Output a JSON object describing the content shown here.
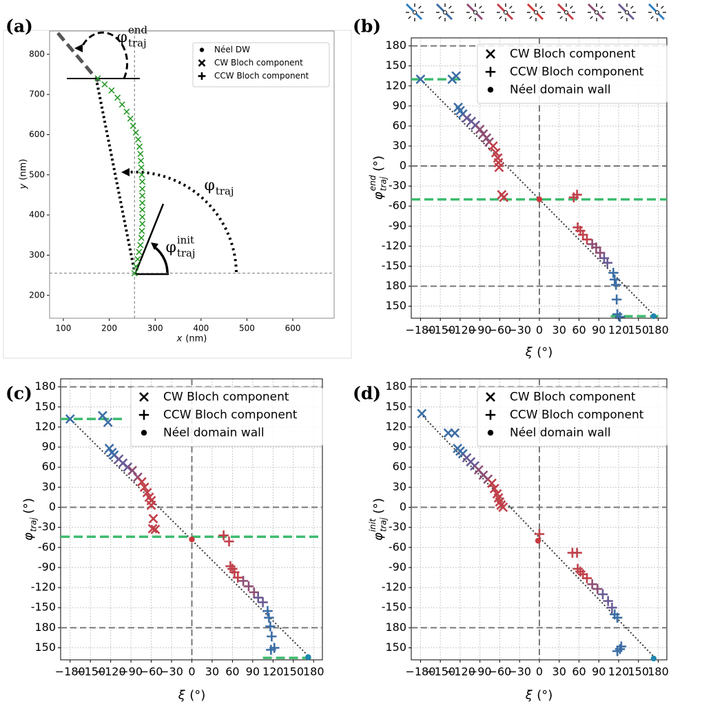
{
  "chart_data": [
    {
      "type": "scatter",
      "label": "(a)",
      "x_label": {
        "symbol": "x",
        "unit": "(nm)"
      },
      "y_label": {
        "symbol": "y",
        "unit": "(nm)"
      },
      "xlim": [
        70,
        690
      ],
      "ylim": [
        143,
        858
      ],
      "xticks": [
        100,
        200,
        300,
        400,
        500,
        600
      ],
      "yticks": [
        200,
        300,
        400,
        500,
        600,
        700,
        800
      ],
      "reference_lines": {
        "x": [
          255
        ],
        "y": [
          255
        ]
      },
      "legend": [
        {
          "name": "Néel DW",
          "marker": "dot"
        },
        {
          "name": "CW Bloch component",
          "marker": "x"
        },
        {
          "name": "CCW Bloch component",
          "marker": "plus"
        }
      ],
      "trajectory": {
        "color": "#2a9a2a",
        "marker": "x",
        "x": [
          255,
          258,
          262,
          265,
          268,
          270,
          271,
          272,
          272,
          272,
          272,
          272,
          272,
          272,
          271,
          270,
          269,
          268,
          266,
          263,
          258,
          252,
          246,
          238,
          228,
          218,
          205,
          190,
          175
        ],
        "y": [
          255,
          272,
          290,
          308,
          325,
          343,
          360,
          378,
          395,
          413,
          430,
          448,
          465,
          483,
          500,
          518,
          535,
          552,
          570,
          588,
          605,
          622,
          640,
          657,
          675,
          692,
          710,
          725,
          740
        ]
      },
      "annotations": [
        {
          "symbol": "φ",
          "sub": "traj",
          "sup": "end"
        },
        {
          "symbol": "φ",
          "sub": "traj"
        },
        {
          "symbol": "φ",
          "sub": "traj",
          "sup": "init"
        }
      ]
    },
    {
      "type": "scatter",
      "label": "(b)",
      "x_label": {
        "symbol": "ξ",
        "unit": "(°)"
      },
      "y_label": {
        "symbol": "φ",
        "sub": "traj",
        "sup": "end",
        "unit": "(°)"
      },
      "xlim": [
        -194,
        193
      ],
      "ylim": [
        -228,
        192
      ],
      "grid": true,
      "xticks": [
        {
          "value": -180,
          "label": "−180"
        },
        {
          "value": -150,
          "label": "−150"
        },
        {
          "value": -120,
          "label": "−120"
        },
        {
          "value": -90,
          "label": "−90"
        },
        {
          "value": -60,
          "label": "−60"
        },
        {
          "value": -30,
          "label": "−30"
        },
        0,
        30,
        60,
        90,
        120,
        150,
        180
      ],
      "yticks": [
        180,
        150,
        120,
        90,
        60,
        30,
        0,
        -30,
        -60,
        -90,
        -120,
        -150,
        {
          "value": -180,
          "label": "180"
        },
        {
          "value": -210,
          "label": "150"
        }
      ],
      "hlines": [
        180,
        0,
        -180
      ],
      "vlines": [
        0
      ],
      "highlight_color": "#3dbb6e",
      "highlights": [
        {
          "y": 130,
          "x": [
            -194,
            -115
          ]
        },
        {
          "y": -50,
          "x": [
            -194,
            193
          ]
        },
        {
          "y": -225,
          "x": [
            108,
            180
          ]
        }
      ],
      "guide_line": {
        "x": [
          -180,
          180
        ],
        "y": [
          130,
          -230
        ]
      },
      "series": [
        {
          "name": "CW Bloch component",
          "marker": "x",
          "x": [
            -180,
            -132,
            -126,
            -123,
            -120,
            -116,
            -110,
            -103,
            -97,
            -90,
            -85,
            -80,
            -76,
            -70,
            -66,
            -63,
            -62,
            -61,
            -57,
            -54
          ],
          "y": [
            130,
            130,
            135,
            88,
            83,
            78,
            72,
            67,
            61,
            55,
            48,
            42,
            36,
            30,
            20,
            12,
            5,
            -2,
            -43,
            -47
          ],
          "colors": [
            "#3b6ea5",
            "#3b6ea5",
            "#3b6ea5",
            "#3b6ea5",
            "#3b6ea5",
            "#3b6ea5",
            "#6b5b95",
            "#6b5b95",
            "#6b5b95",
            "#8e4e75",
            "#8e4e75",
            "#8e4e75",
            "#8e4e75",
            "#c0404a",
            "#c0404a",
            "#c0404a",
            "#c0404a",
            "#c0404a",
            "#c0404a",
            "#c0404a"
          ]
        },
        {
          "name": "CCW Bloch component",
          "marker": "plus",
          "x": [
            52,
            57,
            58,
            62,
            66,
            72,
            80,
            86,
            92,
            98,
            103,
            112,
            114,
            116,
            117,
            118,
            122
          ],
          "y": [
            -47,
            -43,
            -92,
            -97,
            -103,
            -110,
            -117,
            -122,
            -130,
            -138,
            -145,
            -160,
            -170,
            -178,
            -200,
            -222,
            -226
          ],
          "colors": [
            "#c0404a",
            "#c0404a",
            "#c0404a",
            "#c0404a",
            "#c0404a",
            "#c0404a",
            "#8e4e75",
            "#8e4e75",
            "#8e4e75",
            "#6b5b95",
            "#6b5b95",
            "#3b6ea5",
            "#3b6ea5",
            "#3b6ea5",
            "#3b6ea5",
            "#3b6ea5",
            "#3b6ea5"
          ]
        },
        {
          "name": "Néel domain wall",
          "marker": "dot",
          "x": [
            0,
            173
          ],
          "y": [
            -50,
            -225
          ],
          "colors": [
            "#c9383e",
            "#1f86b0"
          ]
        }
      ]
    },
    {
      "type": "scatter",
      "label": "(c)",
      "x_label": {
        "symbol": "ξ",
        "unit": "(°)"
      },
      "y_label": {
        "symbol": "φ",
        "sub": "traj",
        "unit": "(°)"
      },
      "xlim": [
        -194,
        193
      ],
      "ylim": [
        -228,
        192
      ],
      "grid": true,
      "xticks": [
        {
          "value": -180,
          "label": "−180"
        },
        {
          "value": -150,
          "label": "−150"
        },
        {
          "value": -120,
          "label": "−120"
        },
        {
          "value": -90,
          "label": "−90"
        },
        {
          "value": -60,
          "label": "−60"
        },
        {
          "value": -30,
          "label": "−30"
        },
        0,
        30,
        60,
        90,
        120,
        150,
        180
      ],
      "yticks": [
        180,
        150,
        120,
        90,
        60,
        30,
        0,
        -30,
        -60,
        -90,
        -120,
        -150,
        {
          "value": -180,
          "label": "180"
        },
        {
          "value": -210,
          "label": "150"
        }
      ],
      "hlines": [
        180,
        0,
        -180
      ],
      "vlines": [
        0
      ],
      "highlight_color": "#3dbb6e",
      "highlights": [
        {
          "y": 132,
          "x": [
            -194,
            -100
          ]
        },
        {
          "y": -44,
          "x": [
            -194,
            193
          ]
        },
        {
          "y": -225,
          "x": [
            105,
            180
          ]
        }
      ],
      "guide_line": {
        "x": [
          -180,
          175
        ],
        "y": [
          132,
          -225
        ]
      },
      "series": [
        {
          "name": "CW Bloch component",
          "marker": "x",
          "x": [
            -180,
            -132,
            -124,
            -122,
            -118,
            -115,
            -108,
            -102,
            -95,
            -88,
            -80,
            -74,
            -70,
            -66,
            -63,
            -60,
            -60,
            -57,
            -58,
            -54
          ],
          "y": [
            132,
            137,
            127,
            88,
            82,
            78,
            72,
            66,
            60,
            55,
            45,
            38,
            30,
            22,
            15,
            10,
            3,
            -17,
            -32,
            -33
          ],
          "colors": [
            "#3b6ea5",
            "#3b6ea5",
            "#3b6ea5",
            "#3b6ea5",
            "#3b6ea5",
            "#3b6ea5",
            "#6b5b95",
            "#6b5b95",
            "#6b5b95",
            "#8e4e75",
            "#8e4e75",
            "#c0404a",
            "#c0404a",
            "#c0404a",
            "#c0404a",
            "#c0404a",
            "#c0404a",
            "#c0404a",
            "#c0404a",
            "#c0404a"
          ]
        },
        {
          "name": "CCW Bloch component",
          "marker": "plus",
          "x": [
            47,
            55,
            57,
            60,
            63,
            68,
            76,
            84,
            92,
            98,
            105,
            112,
            114,
            116,
            118,
            117,
            122
          ],
          "y": [
            -42,
            -51,
            -88,
            -92,
            -97,
            -105,
            -110,
            -118,
            -127,
            -135,
            -142,
            -155,
            -165,
            -178,
            -193,
            -213,
            -210
          ],
          "colors": [
            "#c0404a",
            "#c0404a",
            "#c0404a",
            "#c0404a",
            "#c0404a",
            "#c0404a",
            "#8e4e75",
            "#8e4e75",
            "#8e4e75",
            "#6b5b95",
            "#6b5b95",
            "#3b6ea5",
            "#3b6ea5",
            "#3b6ea5",
            "#3b6ea5",
            "#3b6ea5",
            "#3b6ea5"
          ]
        },
        {
          "name": "Néel domain wall",
          "marker": "dot",
          "x": [
            0,
            172
          ],
          "y": [
            -48,
            -224
          ],
          "colors": [
            "#c9383e",
            "#1f86b0"
          ]
        }
      ]
    },
    {
      "type": "scatter",
      "label": "(d)",
      "x_label": {
        "symbol": "ξ",
        "unit": "(°)"
      },
      "y_label": {
        "symbol": "φ",
        "sub": "traj",
        "sup": "init",
        "unit": "(°)"
      },
      "xlim": [
        -194,
        193
      ],
      "ylim": [
        -228,
        192
      ],
      "grid": true,
      "xticks": [
        {
          "value": -180,
          "label": "−180"
        },
        {
          "value": -150,
          "label": "−150"
        },
        {
          "value": -120,
          "label": "−120"
        },
        {
          "value": -90,
          "label": "−90"
        },
        {
          "value": -60,
          "label": "−60"
        },
        {
          "value": -30,
          "label": "−30"
        },
        0,
        30,
        60,
        90,
        120,
        150,
        180
      ],
      "yticks": [
        180,
        150,
        120,
        90,
        60,
        30,
        0,
        -30,
        -60,
        -90,
        -120,
        -150,
        {
          "value": -180,
          "label": "180"
        },
        {
          "value": -210,
          "label": "150"
        }
      ],
      "hlines": [
        180,
        0,
        -180
      ],
      "vlines": [
        0
      ],
      "guide_line": {
        "x": [
          -180,
          175
        ],
        "y": [
          140,
          -225
        ]
      },
      "series": [
        {
          "name": "CW Bloch component",
          "marker": "x",
          "x": [
            -178,
            -138,
            -128,
            -124,
            -120,
            -116,
            -110,
            -104,
            -98,
            -92,
            -85,
            -78,
            -72,
            -68,
            -64,
            -62,
            -60,
            -58,
            -55
          ],
          "y": [
            140,
            111,
            111,
            88,
            84,
            80,
            74,
            68,
            62,
            56,
            48,
            42,
            36,
            28,
            20,
            14,
            8,
            3,
            0
          ],
          "colors": [
            "#3b6ea5",
            "#3b6ea5",
            "#3b6ea5",
            "#3b6ea5",
            "#3b6ea5",
            "#3b6ea5",
            "#6b5b95",
            "#6b5b95",
            "#6b5b95",
            "#8e4e75",
            "#8e4e75",
            "#8e4e75",
            "#c0404a",
            "#c0404a",
            "#c0404a",
            "#c0404a",
            "#c0404a",
            "#c0404a",
            "#c0404a"
          ]
        },
        {
          "name": "CCW Bloch component",
          "marker": "plus",
          "x": [
            0,
            50,
            57,
            58,
            62,
            66,
            72,
            80,
            88,
            96,
            104,
            110,
            114,
            118,
            118,
            122,
            124
          ],
          "y": [
            -40,
            -68,
            -68,
            -92,
            -96,
            -100,
            -106,
            -115,
            -122,
            -130,
            -140,
            -150,
            -160,
            -165,
            -215,
            -212,
            -208
          ],
          "colors": [
            "#c0404a",
            "#c0404a",
            "#c0404a",
            "#c0404a",
            "#c0404a",
            "#c0404a",
            "#c0404a",
            "#8e4e75",
            "#8e4e75",
            "#6b5b95",
            "#6b5b95",
            "#6b5b95",
            "#3b6ea5",
            "#3b6ea5",
            "#3b6ea5",
            "#3b6ea5",
            "#3b6ea5"
          ]
        },
        {
          "name": "Néel domain wall",
          "marker": "dot",
          "x": [
            -2,
            173
          ],
          "y": [
            -50,
            -226
          ],
          "colors": [
            "#c9383e",
            "#1f86b0"
          ]
        }
      ]
    }
  ]
}
